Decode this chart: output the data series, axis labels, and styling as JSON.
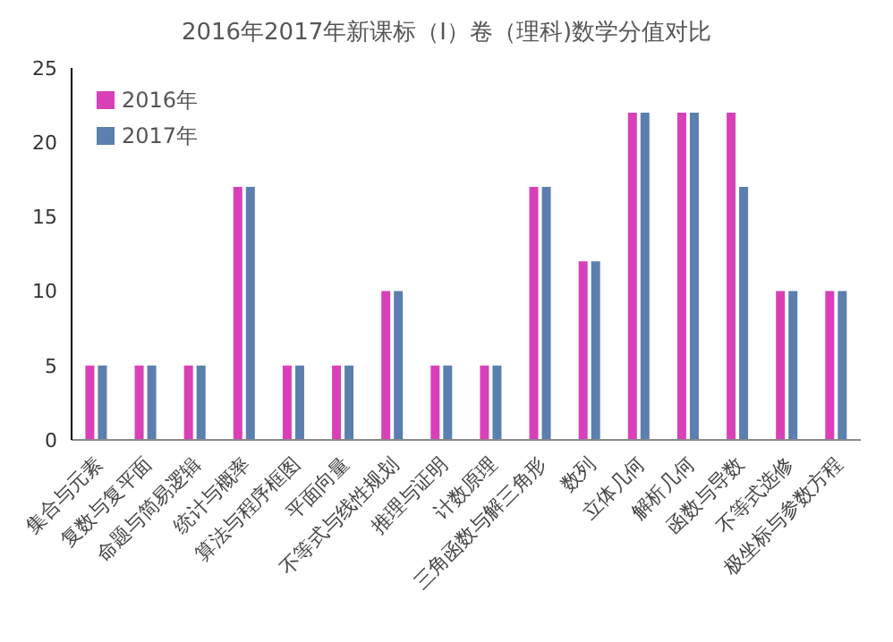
{
  "chart_data": {
    "type": "bar",
    "title": "2016年2017年新课标（Ⅰ）卷（理科)数学分值对比",
    "categories": [
      "集合与元素",
      "复数与复平面",
      "命题与简易逻辑",
      "统计与概率",
      "算法与程序框图",
      "平面向量",
      "不等式与线性规划",
      "推理与证明",
      "计数原理",
      "三角函数与解三角形",
      "数列",
      "立体几何",
      "解析几何",
      "函数与导数",
      "不等式选修",
      "极坐标与参数方程"
    ],
    "series": [
      {
        "name": "2016年",
        "color": "#d940b8",
        "values": [
          5,
          5,
          5,
          17,
          5,
          5,
          10,
          5,
          5,
          17,
          12,
          22,
          22,
          22,
          10,
          10
        ]
      },
      {
        "name": "2017年",
        "color": "#5b7fae",
        "values": [
          5,
          5,
          5,
          17,
          5,
          5,
          10,
          5,
          5,
          17,
          12,
          22,
          22,
          17,
          10,
          10
        ]
      }
    ],
    "ylim": [
      0,
      25
    ],
    "yticks": [
      0,
      5,
      10,
      15,
      20,
      25
    ],
    "grid": false,
    "legend": "top left"
  }
}
